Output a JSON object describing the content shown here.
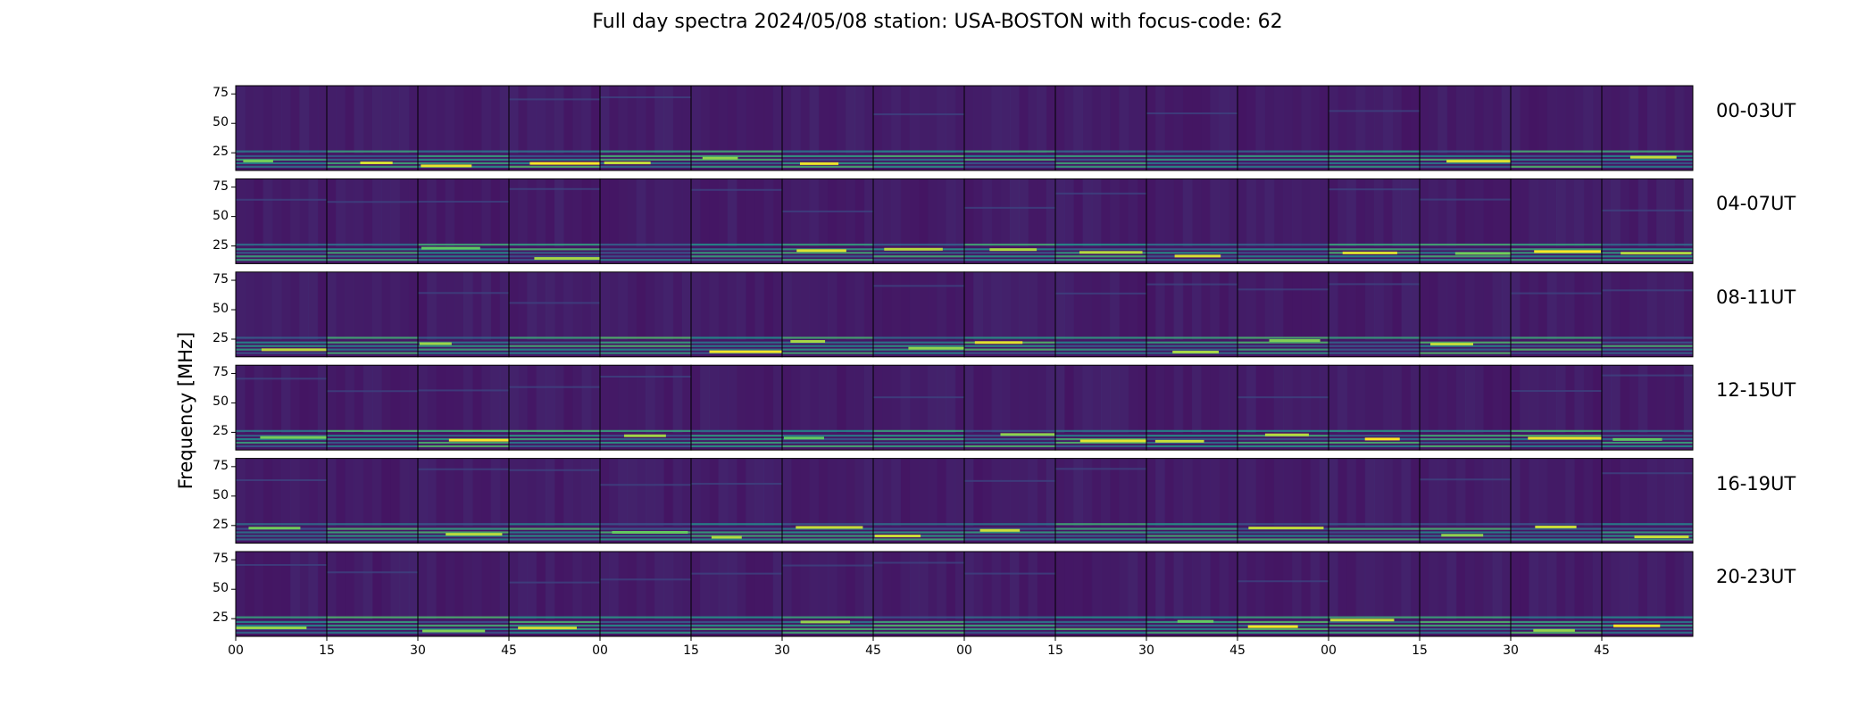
{
  "chart_data": {
    "type": "heatmap",
    "title": "Full day spectra 2024/05/08 station: USA-BOSTON with focus-code: 62",
    "ylabel": "Frequency [MHz]",
    "ylim": [
      10,
      82
    ],
    "yticks": [
      "75",
      "50",
      "25"
    ],
    "ytick_values": [
      75,
      50,
      25
    ],
    "xticks": [
      "00",
      "15",
      "30",
      "45",
      "00",
      "15",
      "30",
      "45",
      "00",
      "15",
      "30",
      "45",
      "00",
      "15",
      "30",
      "45"
    ],
    "rows": [
      "00-03UT",
      "04-07UT",
      "08-11UT",
      "12-15UT",
      "16-19UT",
      "20-23UT"
    ],
    "panels_per_row": 16,
    "minutes_per_panel": 15,
    "colormap": "viridis",
    "grid": false
  }
}
